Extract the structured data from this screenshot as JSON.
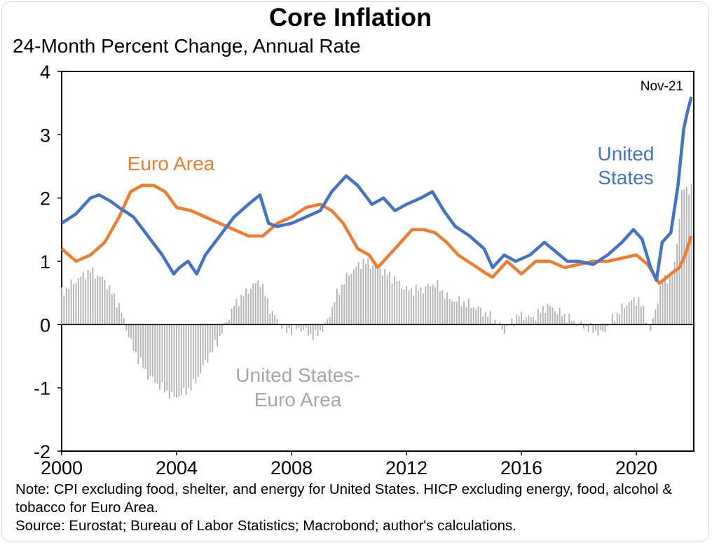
{
  "chart_data": {
    "type": "line",
    "title": "Core Inflation",
    "subtitle": "24-Month Percent Change, Annual Rate",
    "ylim": [
      -2,
      4
    ],
    "yticks": [
      -2,
      -1,
      0,
      1,
      2,
      3,
      4
    ],
    "xlim": [
      2000,
      2022
    ],
    "xticks": [
      "2000",
      "2004",
      "2008",
      "2012",
      "2016",
      "2020"
    ],
    "end_label": "Nov-21",
    "series": [
      {
        "name": "United States",
        "label_lines": [
          "United",
          "States"
        ],
        "color": "#4472c4",
        "points": [
          [
            2000.0,
            1.6
          ],
          [
            2000.5,
            1.75
          ],
          [
            2001.0,
            2.0
          ],
          [
            2001.3,
            2.05
          ],
          [
            2001.7,
            1.95
          ],
          [
            2002.0,
            1.85
          ],
          [
            2002.5,
            1.7
          ],
          [
            2003.0,
            1.4
          ],
          [
            2003.5,
            1.1
          ],
          [
            2003.9,
            0.8
          ],
          [
            2004.1,
            0.9
          ],
          [
            2004.4,
            1.0
          ],
          [
            2004.7,
            0.8
          ],
          [
            2005.0,
            1.1
          ],
          [
            2005.5,
            1.4
          ],
          [
            2006.0,
            1.7
          ],
          [
            2006.5,
            1.9
          ],
          [
            2006.9,
            2.05
          ],
          [
            2007.2,
            1.6
          ],
          [
            2007.5,
            1.55
          ],
          [
            2008.0,
            1.6
          ],
          [
            2008.5,
            1.7
          ],
          [
            2009.0,
            1.8
          ],
          [
            2009.4,
            2.1
          ],
          [
            2009.9,
            2.35
          ],
          [
            2010.3,
            2.2
          ],
          [
            2010.8,
            1.9
          ],
          [
            2011.2,
            2.0
          ],
          [
            2011.6,
            1.8
          ],
          [
            2012.0,
            1.9
          ],
          [
            2012.5,
            2.0
          ],
          [
            2012.9,
            2.1
          ],
          [
            2013.3,
            1.8
          ],
          [
            2013.7,
            1.55
          ],
          [
            2014.2,
            1.4
          ],
          [
            2014.7,
            1.2
          ],
          [
            2015.0,
            0.9
          ],
          [
            2015.4,
            1.1
          ],
          [
            2015.8,
            1.0
          ],
          [
            2016.3,
            1.1
          ],
          [
            2016.8,
            1.3
          ],
          [
            2017.2,
            1.15
          ],
          [
            2017.6,
            1.0
          ],
          [
            2018.0,
            1.0
          ],
          [
            2018.5,
            0.95
          ],
          [
            2019.0,
            1.1
          ],
          [
            2019.5,
            1.3
          ],
          [
            2019.9,
            1.5
          ],
          [
            2020.2,
            1.35
          ],
          [
            2020.5,
            0.9
          ],
          [
            2020.7,
            0.7
          ],
          [
            2020.9,
            1.3
          ],
          [
            2021.2,
            1.45
          ],
          [
            2021.45,
            2.2
          ],
          [
            2021.65,
            3.1
          ],
          [
            2021.8,
            3.4
          ],
          [
            2021.92,
            3.6
          ]
        ]
      },
      {
        "name": "Euro Area",
        "color": "#ed7d31",
        "points": [
          [
            2000.0,
            1.2
          ],
          [
            2000.5,
            1.0
          ],
          [
            2001.0,
            1.1
          ],
          [
            2001.5,
            1.3
          ],
          [
            2002.0,
            1.7
          ],
          [
            2002.4,
            2.1
          ],
          [
            2002.8,
            2.2
          ],
          [
            2003.2,
            2.2
          ],
          [
            2003.6,
            2.1
          ],
          [
            2004.0,
            1.85
          ],
          [
            2004.5,
            1.8
          ],
          [
            2005.0,
            1.7
          ],
          [
            2005.5,
            1.6
          ],
          [
            2006.0,
            1.5
          ],
          [
            2006.5,
            1.4
          ],
          [
            2007.0,
            1.4
          ],
          [
            2007.5,
            1.6
          ],
          [
            2008.0,
            1.7
          ],
          [
            2008.5,
            1.85
          ],
          [
            2009.0,
            1.9
          ],
          [
            2009.4,
            1.8
          ],
          [
            2009.8,
            1.6
          ],
          [
            2010.3,
            1.2
          ],
          [
            2010.7,
            1.1
          ],
          [
            2011.0,
            0.9
          ],
          [
            2011.4,
            1.1
          ],
          [
            2011.8,
            1.3
          ],
          [
            2012.2,
            1.5
          ],
          [
            2012.6,
            1.5
          ],
          [
            2013.0,
            1.45
          ],
          [
            2013.4,
            1.3
          ],
          [
            2013.8,
            1.1
          ],
          [
            2014.3,
            0.95
          ],
          [
            2014.8,
            0.8
          ],
          [
            2015.0,
            0.75
          ],
          [
            2015.5,
            1.0
          ],
          [
            2016.0,
            0.8
          ],
          [
            2016.5,
            1.0
          ],
          [
            2017.0,
            1.0
          ],
          [
            2017.5,
            0.9
          ],
          [
            2018.0,
            0.95
          ],
          [
            2018.5,
            1.0
          ],
          [
            2019.0,
            1.0
          ],
          [
            2019.5,
            1.05
          ],
          [
            2020.0,
            1.1
          ],
          [
            2020.4,
            0.95
          ],
          [
            2020.8,
            0.65
          ],
          [
            2021.2,
            0.8
          ],
          [
            2021.5,
            0.9
          ],
          [
            2021.7,
            1.1
          ],
          [
            2021.92,
            1.4
          ]
        ]
      },
      {
        "name": "United States-Euro Area",
        "label_lines": [
          "United States-",
          "Euro Area"
        ],
        "type": "bar",
        "color": "#b3b3b3",
        "label_color": "#a6a6a6",
        "points": [
          [
            2000.0,
            0.5
          ],
          [
            2000.5,
            0.7
          ],
          [
            2001.0,
            0.85
          ],
          [
            2001.5,
            0.7
          ],
          [
            2002.0,
            0.3
          ],
          [
            2002.5,
            -0.4
          ],
          [
            2003.0,
            -0.8
          ],
          [
            2003.5,
            -1.0
          ],
          [
            2003.9,
            -1.15
          ],
          [
            2004.2,
            -1.1
          ],
          [
            2004.6,
            -0.95
          ],
          [
            2005.0,
            -0.6
          ],
          [
            2005.5,
            -0.2
          ],
          [
            2006.0,
            0.3
          ],
          [
            2006.5,
            0.55
          ],
          [
            2006.9,
            0.7
          ],
          [
            2007.3,
            0.2
          ],
          [
            2007.8,
            -0.1
          ],
          [
            2008.3,
            -0.05
          ],
          [
            2008.8,
            -0.2
          ],
          [
            2009.2,
            0.0
          ],
          [
            2009.6,
            0.5
          ],
          [
            2010.0,
            0.8
          ],
          [
            2010.5,
            1.0
          ],
          [
            2011.0,
            0.9
          ],
          [
            2011.5,
            0.75
          ],
          [
            2012.0,
            0.55
          ],
          [
            2012.5,
            0.55
          ],
          [
            2013.0,
            0.65
          ],
          [
            2013.5,
            0.4
          ],
          [
            2014.0,
            0.35
          ],
          [
            2014.5,
            0.25
          ],
          [
            2015.0,
            0.1
          ],
          [
            2015.4,
            -0.1
          ],
          [
            2015.9,
            0.15
          ],
          [
            2016.4,
            0.1
          ],
          [
            2016.9,
            0.3
          ],
          [
            2017.3,
            0.2
          ],
          [
            2017.8,
            0.05
          ],
          [
            2018.3,
            -0.05
          ],
          [
            2018.8,
            -0.15
          ],
          [
            2019.2,
            0.1
          ],
          [
            2019.7,
            0.35
          ],
          [
            2020.1,
            0.4
          ],
          [
            2020.5,
            -0.1
          ],
          [
            2020.9,
            0.7
          ],
          [
            2021.3,
            0.8
          ],
          [
            2021.6,
            2.15
          ],
          [
            2021.92,
            2.15
          ]
        ]
      }
    ],
    "note": "Note: CPI excluding food, shelter, and energy for United States. HICP excluding energy, food, alcohol & tobacco for Euro Area.",
    "source": "Source: Eurostat; Bureau of Labor Statistics; Macrobond; author's calculations."
  }
}
